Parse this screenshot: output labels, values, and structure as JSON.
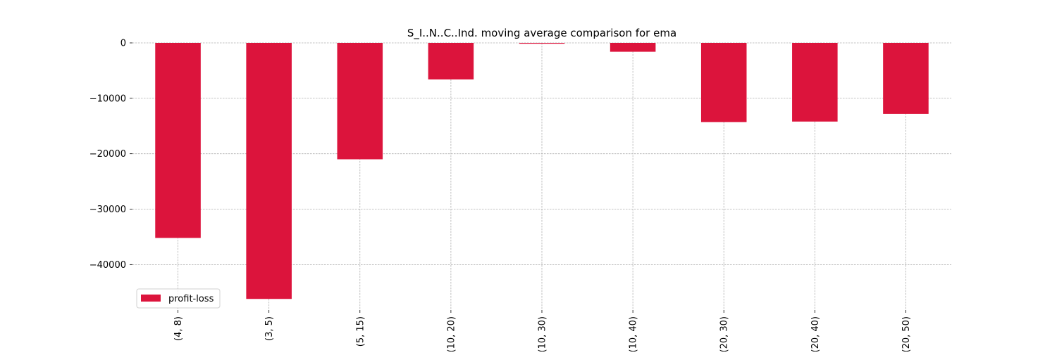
{
  "chart_data": {
    "type": "bar",
    "title": "S_I..N..C..Ind. moving average comparison for ema",
    "xlabel": "",
    "ylabel": "",
    "categories": [
      "(4, 8)",
      "(3, 5)",
      "(5, 15)",
      "(10, 20)",
      "(10, 30)",
      "(10, 40)",
      "(20, 30)",
      "(20, 40)",
      "(20, 50)"
    ],
    "series": [
      {
        "name": "profit-loss",
        "color": "#dc143c",
        "values": [
          -35200,
          -46200,
          -21000,
          -6600,
          -150,
          -1600,
          -14300,
          -14200,
          -12800
        ]
      }
    ],
    "yticks": [
      0,
      -10000,
      -20000,
      -30000,
      -40000
    ],
    "ytick_labels": [
      "0",
      "−10000",
      "−20000",
      "−30000",
      "−40000"
    ],
    "ylim": [
      -48200,
      0
    ],
    "grid": true,
    "legend_position": "lower-left"
  }
}
